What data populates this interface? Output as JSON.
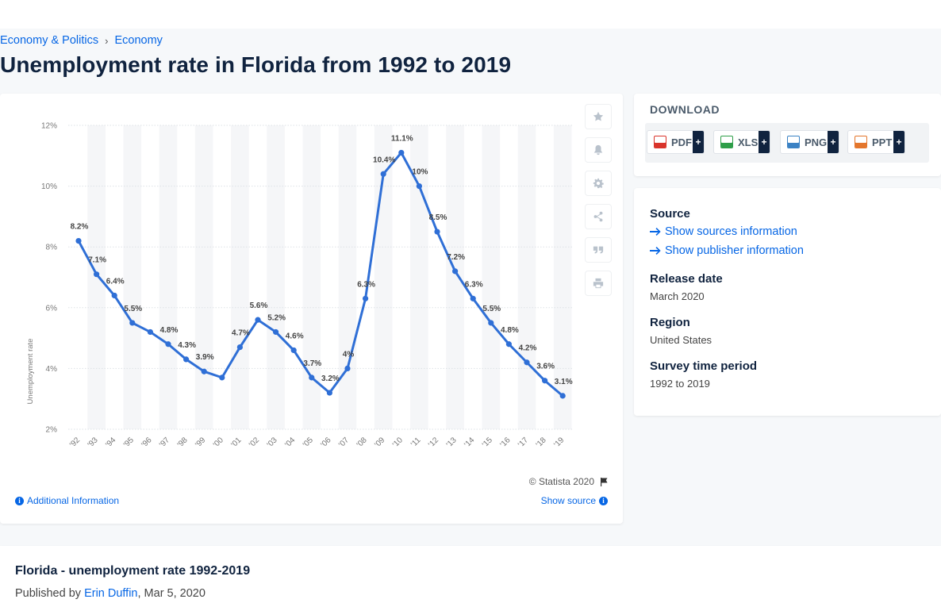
{
  "breadcrumb": {
    "item1": "Economy & Politics",
    "separator": "›",
    "item2": "Economy"
  },
  "page_title": "Unemployment rate in Florida from 1992 to 2019",
  "chart_tools": [
    "star-icon",
    "bell-icon",
    "gear-icon",
    "share-icon",
    "quote-icon",
    "print-icon"
  ],
  "chart_footer": {
    "copyright": "© Statista 2020",
    "additional_info": "Additional Information",
    "show_source": "Show source"
  },
  "chart_data": {
    "type": "line",
    "title": "",
    "xlabel": "",
    "ylabel": "Unemployment rate",
    "categories": [
      "'92",
      "'93",
      "'94",
      "'95",
      "'96",
      "'97",
      "'98",
      "'99",
      "'00",
      "'01",
      "'02",
      "'03",
      "'04",
      "'05",
      "'06",
      "'07",
      "'08",
      "'09",
      "'10",
      "'11",
      "'12",
      "'13",
      "'14",
      "'15",
      "'16",
      "'17",
      "'18",
      "'19"
    ],
    "values": [
      8.2,
      7.1,
      6.4,
      5.5,
      5.2,
      4.8,
      4.3,
      3.9,
      3.7,
      4.7,
      5.6,
      5.2,
      4.6,
      3.7,
      3.2,
      4.0,
      6.3,
      10.4,
      11.1,
      10.0,
      8.5,
      7.2,
      6.3,
      5.5,
      4.8,
      4.2,
      3.6,
      3.1
    ],
    "data_labels": [
      "8.2%",
      "7.1%",
      "6.4%",
      "5.5%",
      "",
      "4.8%",
      "4.3%",
      "3.9%",
      "",
      "4.7%",
      "5.6%",
      "5.2%",
      "4.6%",
      "3.7%",
      "3.2%",
      "4%",
      "6.3%",
      "10.4%",
      "11.1%",
      "10%",
      "8.5%",
      "7.2%",
      "6.3%",
      "5.5%",
      "4.8%",
      "4.2%",
      "3.6%",
      "3.1%"
    ],
    "yticks": [
      "2%",
      "4%",
      "6%",
      "8%",
      "10%",
      "12%"
    ],
    "ylim": [
      2,
      12
    ],
    "grid": true,
    "line_color": "#2f6fd6"
  },
  "download": {
    "title": "DOWNLOAD",
    "buttons": [
      {
        "label": "PDF",
        "plus": "+",
        "color": "#d9342b"
      },
      {
        "label": "XLS",
        "plus": "+",
        "color": "#2e9e49"
      },
      {
        "label": "PNG",
        "plus": "+",
        "color": "#3b82c4"
      },
      {
        "label": "PPT",
        "plus": "+",
        "color": "#e4762c"
      }
    ]
  },
  "meta": {
    "source_heading": "Source",
    "show_sources": "Show sources information",
    "show_publisher": "Show publisher information",
    "release_heading": "Release date",
    "release_value": "March 2020",
    "region_heading": "Region",
    "region_value": "United States",
    "period_heading": "Survey time period",
    "period_value": "1992 to 2019"
  },
  "publication": {
    "title": "Florida - unemployment rate 1992-2019",
    "published_by": "Published by",
    "author": "Erin Duffin",
    "date": ", Mar 5, 2020"
  }
}
